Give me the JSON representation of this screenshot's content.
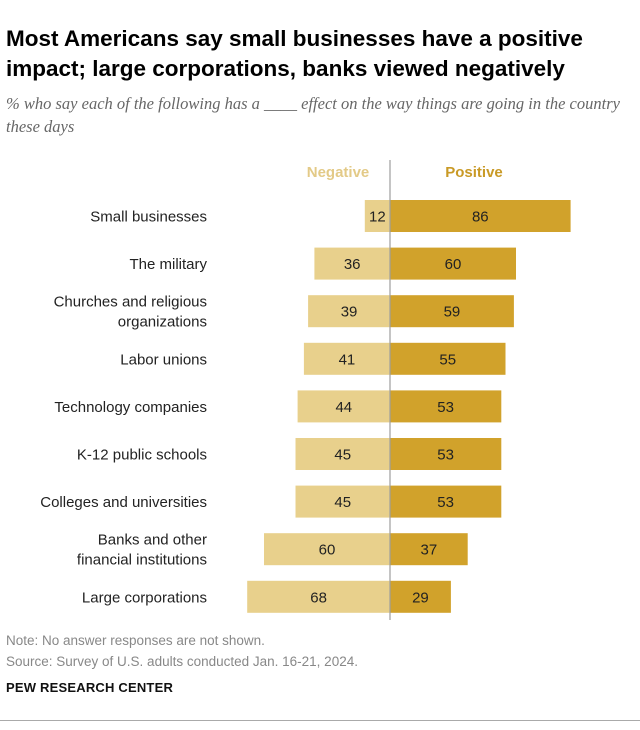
{
  "title": "Most Americans say small businesses have a positive impact; large corporations, banks viewed negatively",
  "subtitle": "% who say each of the following has a ____ effect on the way things are going in the country these days",
  "note": "Note: No answer responses are not shown.",
  "source": "Source: Survey of U.S. adults conducted Jan. 16-21, 2024.",
  "brand": "PEW RESEARCH CENTER",
  "colors": {
    "negative": "#E8D08C",
    "positive": "#D1A22B",
    "negative_label": "#E3CA87",
    "positive_label": "#C99A26",
    "divider": "#9e9e9e"
  },
  "chart_data": {
    "type": "bar",
    "orientation": "horizontal-diverging",
    "legend_position": "top",
    "grid": false,
    "categories": [
      [
        "Small businesses"
      ],
      [
        "The military"
      ],
      [
        "Churches and religious",
        "organizations"
      ],
      [
        "Labor unions"
      ],
      [
        "Technology companies"
      ],
      [
        "K-12 public schools"
      ],
      [
        "Colleges and universities"
      ],
      [
        "Banks and other",
        "financial institutions"
      ],
      [
        "Large corporations"
      ]
    ],
    "series": [
      {
        "name": "Negative",
        "values": [
          12,
          36,
          39,
          41,
          44,
          45,
          45,
          60,
          68
        ]
      },
      {
        "name": "Positive",
        "values": [
          86,
          60,
          59,
          55,
          53,
          53,
          53,
          37,
          29
        ]
      }
    ]
  }
}
